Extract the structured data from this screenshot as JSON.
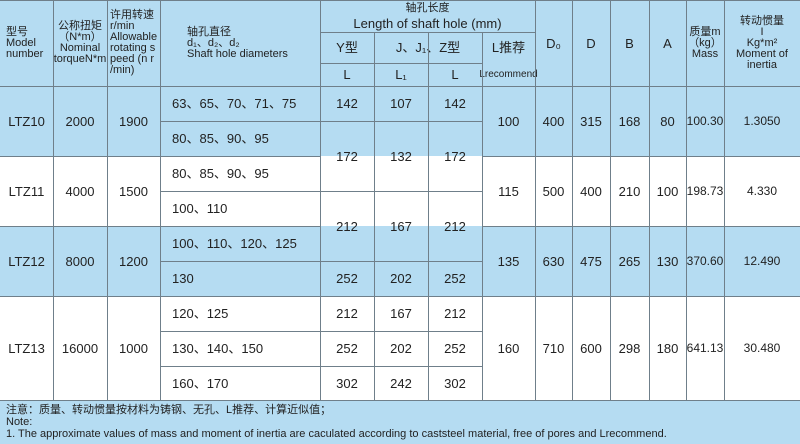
{
  "colors": {
    "band": "#b5dcf2",
    "line": "#6f7f8a"
  },
  "header": {
    "model": [
      "型号",
      "Model",
      "number"
    ],
    "torque": [
      "公称扭矩",
      "（N*m）",
      "Nominal",
      "torqueN*m"
    ],
    "speed": [
      "许用转速",
      "r/min",
      "Allowable",
      "rotating s",
      "peed (n r",
      "/min)"
    ],
    "diam": [
      "轴孔直径",
      "d₁、d₂、d₂",
      "Shaft hole diameters"
    ],
    "length_cn": "轴孔长度",
    "length_en": "Length of shaft hole (mm)",
    "y_type": "Y型",
    "j_type": "J、J₁、Z型",
    "l_rec": "L推荐",
    "l_rec_en": "Lrecommend",
    "l": "L",
    "l1": "L₁",
    "d0": "D₀",
    "d": "D",
    "b": "B",
    "a": "A",
    "mass": [
      "质量m",
      "（kg）",
      "Mass"
    ],
    "inertia": [
      "转动惯量",
      "I",
      "Kg*m²",
      "Moment of",
      "inertia"
    ]
  },
  "groups": [
    {
      "model": "LTZ10",
      "torque": "2000",
      "speed": "1900",
      "lrec": "100",
      "d0": "400",
      "d": "315",
      "b": "168",
      "a": "80",
      "mass": "100.30",
      "inertia": "1.3050"
    },
    {
      "model": "LTZ11",
      "torque": "4000",
      "speed": "1500",
      "lrec": "115",
      "d0": "500",
      "d": "400",
      "b": "210",
      "a": "100",
      "mass": "198.73",
      "inertia": "4.330"
    },
    {
      "model": "LTZ12",
      "torque": "8000",
      "speed": "1200",
      "lrec": "135",
      "d0": "630",
      "d": "475",
      "b": "265",
      "a": "130",
      "mass": "370.60",
      "inertia": "12.490"
    },
    {
      "model": "LTZ13",
      "torque": "16000",
      "speed": "1000",
      "lrec": "160",
      "d0": "710",
      "d": "600",
      "b": "298",
      "a": "180",
      "mass": "641.13",
      "inertia": "30.480"
    }
  ],
  "diameters": [
    "63、65、70、71、75",
    "80、85、90、95",
    "80、85、90、95",
    "100、110",
    "100、110、120、125",
    "130",
    "120、125",
    "130、140、150",
    "160、170"
  ],
  "lengths": [
    [
      "142",
      "107",
      "142"
    ],
    [
      "172",
      "132",
      "172"
    ],
    [
      "212",
      "167",
      "212"
    ],
    [
      "252",
      "202",
      "252"
    ],
    [
      "212",
      "167",
      "212"
    ],
    [
      "252",
      "202",
      "252"
    ],
    [
      "302",
      "242",
      "302"
    ]
  ],
  "note": {
    "cn": "注意：质量、转动惯量按材料为铸钢、无孔、L推荐、计算近似值；",
    "label": "Note:",
    "line1": "1. The approximate values of mass and moment of inertia are caculated according to caststeel material, free of pores and Lrecommend."
  }
}
